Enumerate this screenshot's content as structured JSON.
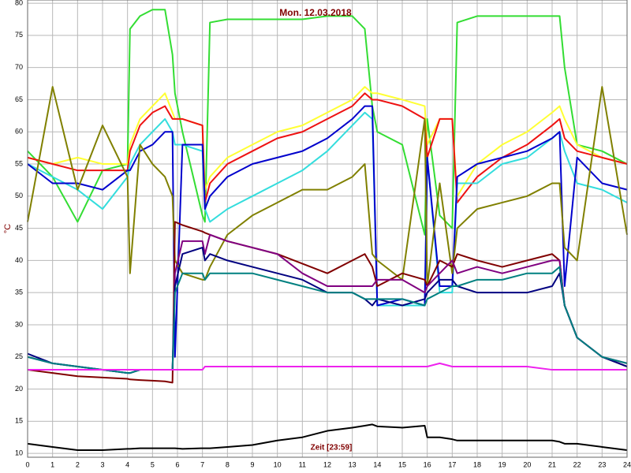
{
  "chart_data": {
    "type": "line",
    "title": "Mon. 12.03.2018",
    "xlabel": "Zeit [23:59]",
    "ylabel": "°C",
    "x": [
      0,
      1,
      2,
      3,
      4,
      4.1,
      4.5,
      5,
      5.5,
      5.8,
      5.9,
      6.2,
      7,
      7.1,
      7.3,
      8,
      9,
      10,
      11,
      12,
      13,
      13.5,
      13.8,
      14,
      15,
      15.9,
      16,
      16.5,
      17,
      17.2,
      18,
      19,
      20,
      21,
      21.3,
      21.5,
      22,
      23,
      24
    ],
    "xlim": [
      0,
      24
    ],
    "xticks": [
      0,
      1,
      2,
      3,
      4,
      5,
      6,
      7,
      8,
      9,
      10,
      11,
      12,
      13,
      14,
      15,
      16,
      17,
      18,
      19,
      20,
      21,
      22,
      23,
      24
    ],
    "ylim": [
      9.4,
      80.5
    ],
    "yticks": [
      10,
      15,
      20,
      25,
      30,
      35,
      40,
      45,
      50,
      55,
      60,
      65,
      70,
      75,
      80
    ],
    "grid": true,
    "series": [
      {
        "color": "#33dd33",
        "values": [
          57,
          53,
          46,
          54,
          55,
          76,
          78,
          79,
          79,
          72,
          66,
          60,
          47,
          46,
          77,
          77.5,
          77.5,
          77.5,
          77.5,
          78,
          78,
          76,
          64,
          60,
          58,
          44,
          62,
          47,
          45,
          77,
          78,
          78,
          78,
          78,
          78,
          70,
          58,
          57,
          55
        ]
      },
      {
        "color": "#ffff33",
        "values": [
          56,
          55,
          56,
          55,
          55,
          58,
          62,
          64,
          66,
          63,
          62,
          62,
          61,
          51,
          53,
          56,
          58,
          60,
          61,
          63,
          65,
          67,
          66,
          66,
          65,
          64,
          58,
          62,
          62,
          50,
          55,
          58,
          60,
          63,
          64,
          62,
          58,
          56,
          55
        ]
      },
      {
        "color": "#ee1111",
        "values": [
          56,
          55,
          54,
          54,
          54,
          57,
          61,
          63,
          64,
          62,
          62,
          62,
          61,
          49,
          52,
          55,
          57,
          59,
          60,
          62,
          64,
          66,
          65,
          65,
          64,
          62,
          56,
          62,
          62,
          49,
          53,
          56,
          58,
          61,
          62,
          59,
          57,
          56,
          55
        ]
      },
      {
        "color": "#33dddd",
        "values": [
          55,
          53,
          51,
          48,
          53,
          55,
          58,
          60,
          62,
          60,
          58,
          58,
          57,
          48,
          46,
          48,
          50,
          52,
          54,
          57,
          61,
          63,
          62,
          33,
          33,
          33,
          56,
          35,
          35,
          52,
          52,
          55,
          56,
          59,
          60,
          57,
          52,
          51,
          49
        ]
      },
      {
        "color": "#0000cc",
        "values": [
          55,
          52,
          52,
          51,
          54,
          54,
          57,
          58,
          60,
          60,
          25,
          58,
          58,
          48,
          50,
          53,
          55,
          56,
          57,
          59,
          62,
          64,
          64,
          33,
          34,
          33,
          56,
          36,
          36,
          53,
          55,
          56,
          57,
          59,
          60,
          36,
          56,
          52,
          51
        ]
      },
      {
        "color": "#808000",
        "values": [
          46,
          67,
          51,
          61,
          53,
          38,
          58,
          55,
          53,
          50,
          40,
          38,
          37,
          37,
          39,
          44,
          47,
          49,
          51,
          51,
          53,
          55,
          41,
          40,
          37,
          62,
          36,
          52,
          38,
          45,
          48,
          49,
          50,
          52,
          52,
          42,
          40,
          67,
          44
        ]
      },
      {
        "color": "#800000",
        "values": [
          23,
          22.5,
          22,
          21.8,
          21.6,
          21.5,
          21.4,
          21.3,
          21.2,
          21,
          46,
          45.5,
          44.5,
          44.3,
          44,
          43,
          42,
          41,
          39.5,
          38,
          40,
          41,
          39,
          36,
          38,
          37,
          36,
          40,
          39,
          41,
          40,
          39,
          40,
          41,
          40,
          33,
          28,
          25,
          23.5
        ]
      },
      {
        "color": "#800080",
        "values": [
          25,
          24,
          23.5,
          23,
          22.5,
          22.5,
          23,
          23,
          23,
          23,
          38,
          43,
          43,
          41,
          44,
          43,
          42,
          41,
          38,
          36,
          36,
          36,
          36,
          37,
          37,
          35,
          36,
          38,
          40,
          38,
          39,
          38,
          39,
          40,
          40,
          33,
          28,
          25,
          24
        ]
      },
      {
        "color": "#000080",
        "values": [
          25.5,
          24,
          23.5,
          23,
          22.5,
          22.5,
          23,
          23,
          23,
          23,
          36,
          41,
          42,
          40,
          41,
          40,
          39,
          38,
          37,
          35,
          35,
          34,
          33,
          34,
          33,
          34,
          35,
          37,
          37,
          36,
          35,
          35,
          35,
          36,
          38,
          33,
          28,
          25,
          23.5
        ]
      },
      {
        "color": "#008080",
        "values": [
          25,
          24,
          23.5,
          23,
          22.5,
          22.5,
          23,
          23,
          23,
          23,
          35,
          38,
          38,
          37,
          38,
          38,
          38,
          37,
          36,
          35,
          35,
          34,
          34,
          34,
          34,
          33,
          34,
          35,
          36,
          36,
          37,
          37,
          38,
          38,
          39,
          33,
          28,
          25,
          24
        ]
      },
      {
        "color": "#ee22ee",
        "values": [
          23,
          23,
          23,
          23,
          23,
          23,
          23,
          23,
          23,
          23,
          23,
          23,
          23,
          23.5,
          23.5,
          23.5,
          23.5,
          23.5,
          23.5,
          23.5,
          23.5,
          23.5,
          23.5,
          23.5,
          23.5,
          23.5,
          23.5,
          24,
          23.5,
          23.5,
          23.5,
          23.5,
          23.5,
          23,
          23,
          23,
          23,
          23,
          23
        ]
      },
      {
        "color": "#000000",
        "values": [
          11.5,
          11,
          10.5,
          10.5,
          10.7,
          10.7,
          10.8,
          10.8,
          10.8,
          10.8,
          10.8,
          10.7,
          10.8,
          10.8,
          10.8,
          11,
          11.3,
          12,
          12.5,
          13.5,
          14,
          14.3,
          14.5,
          14.2,
          14,
          14.3,
          12.5,
          12.5,
          12.2,
          12,
          12,
          12,
          12,
          12,
          11.8,
          11.5,
          11.5,
          11,
          10.5
        ]
      }
    ]
  }
}
